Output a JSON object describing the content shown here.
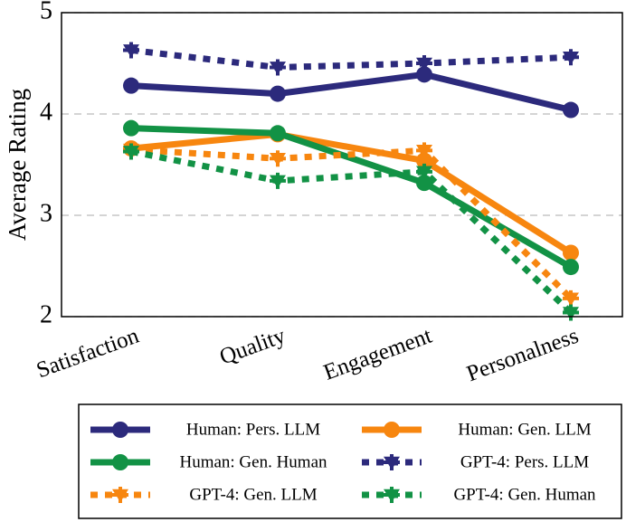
{
  "chart_data": {
    "type": "line",
    "ylabel": "Average Rating",
    "categories": [
      "Satisfaction",
      "Quality",
      "Engagement",
      "Personalness"
    ],
    "ylim": [
      2,
      5
    ],
    "yticks": [
      2,
      3,
      4,
      5
    ],
    "grid": true,
    "series": [
      {
        "name": "Human: Pers. LLM",
        "color": "#2c2a7c",
        "linestyle": "solid",
        "marker": "circle",
        "values": [
          4.28,
          4.2,
          4.39,
          4.04
        ]
      },
      {
        "name": "Human: Gen. LLM",
        "color": "#f7860f",
        "linestyle": "solid",
        "marker": "circle",
        "values": [
          3.66,
          3.8,
          3.54,
          2.63
        ]
      },
      {
        "name": "Human: Gen. Human",
        "color": "#129245",
        "linestyle": "solid",
        "marker": "circle",
        "values": [
          3.86,
          3.81,
          3.32,
          2.49
        ]
      },
      {
        "name": "GPT-4: Pers. LLM",
        "color": "#2c2a7c",
        "linestyle": "dashed",
        "marker": "triangle",
        "values": [
          4.63,
          4.46,
          4.5,
          4.56
        ]
      },
      {
        "name": "GPT-4: Gen. LLM",
        "color": "#f7860f",
        "linestyle": "dashed",
        "marker": "triangle",
        "values": [
          3.65,
          3.56,
          3.64,
          2.18
        ]
      },
      {
        "name": "GPT-4: Gen. Human",
        "color": "#129245",
        "linestyle": "dashed",
        "marker": "triangle",
        "values": [
          3.63,
          3.34,
          3.43,
          2.04
        ]
      }
    ]
  }
}
